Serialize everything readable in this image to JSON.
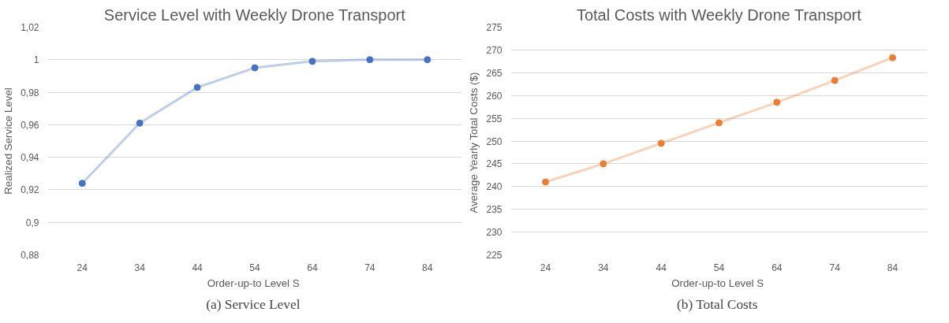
{
  "chart_data": [
    {
      "type": "line",
      "title": "Service Level with Weekly Drone Transport",
      "xlabel": "Order-up-to Level  S",
      "ylabel": "Realized Service Level",
      "categories": [
        "24",
        "34",
        "44",
        "54",
        "64",
        "74",
        "84"
      ],
      "series": [
        {
          "color": "#4472c4",
          "values": [
            0.924,
            0.961,
            0.983,
            0.995,
            0.999,
            1.0,
            1.0
          ]
        }
      ],
      "ylim": [
        0.88,
        1.02
      ],
      "yticks": [
        {
          "value": 0.88,
          "label": "0,88"
        },
        {
          "value": 0.9,
          "label": "0,9"
        },
        {
          "value": 0.92,
          "label": "0,92"
        },
        {
          "value": 0.94,
          "label": "0,94"
        },
        {
          "value": 0.96,
          "label": "0,96"
        },
        {
          "value": 0.98,
          "label": "0,98"
        },
        1,
        {
          "value": 1.02,
          "label": "1,02"
        }
      ],
      "grid": "y",
      "marker": "circle",
      "line_style": "solid",
      "annotations": [
        "(a)  Service Level"
      ]
    },
    {
      "type": "line",
      "title": "Total Costs with Weekly Drone Transport",
      "xlabel": "Order-up-to Level  S",
      "ylabel": "Average  Yearly Total Costs ($)",
      "categories": [
        "24",
        "34",
        "44",
        "54",
        "64",
        "74",
        "84"
      ],
      "series": [
        {
          "color": "#ed7d31",
          "values": [
            241,
            245,
            249.5,
            254,
            258.5,
            263.3,
            268.3
          ]
        }
      ],
      "ylim": [
        225,
        275
      ],
      "yticks": [
        225,
        230,
        235,
        240,
        245,
        250,
        255,
        260,
        265,
        270,
        275
      ],
      "grid": "y",
      "marker": "circle",
      "line_style": "solid",
      "annotations": [
        "(b)  Total Costs"
      ]
    }
  ]
}
